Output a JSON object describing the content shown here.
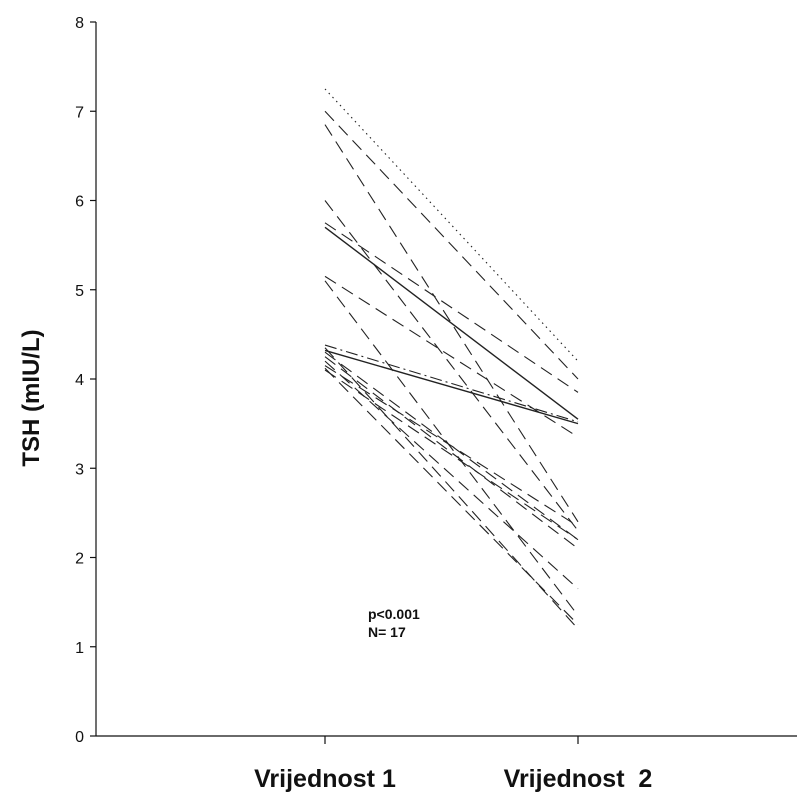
{
  "chart_data": {
    "type": "line",
    "title": "",
    "ylabel": "TSH (mIU/L)",
    "xlabel": "",
    "categories": [
      "Vrijednost 1",
      "Vrijednost  2"
    ],
    "ylim": [
      0,
      8
    ],
    "yticks": [
      "0",
      "1",
      "2",
      "3",
      "4",
      "5",
      "6",
      "7",
      "8"
    ],
    "grid": false,
    "annotation": {
      "line1": "p<0.001",
      "line2": "N= 17"
    },
    "series": [
      {
        "values": [
          7.25,
          4.2
        ],
        "style": "dotted"
      },
      {
        "values": [
          7.0,
          4.0
        ],
        "style": "dashed"
      },
      {
        "values": [
          6.85,
          2.4
        ],
        "style": "dashed"
      },
      {
        "values": [
          6.0,
          2.3
        ],
        "style": "dashed"
      },
      {
        "values": [
          5.75,
          3.85
        ],
        "style": "dashed"
      },
      {
        "values": [
          5.7,
          3.55
        ],
        "style": "solid"
      },
      {
        "values": [
          5.15,
          3.35
        ],
        "style": "dashed"
      },
      {
        "values": [
          5.1,
          1.35
        ],
        "style": "dashed"
      },
      {
        "values": [
          4.38,
          3.52
        ],
        "style": "dash-dot"
      },
      {
        "values": [
          4.35,
          1.2
        ],
        "style": "dashed"
      },
      {
        "values": [
          4.32,
          3.5
        ],
        "style": "solid"
      },
      {
        "values": [
          4.3,
          2.2
        ],
        "style": "dashed"
      },
      {
        "values": [
          4.25,
          2.1
        ],
        "style": "dashed"
      },
      {
        "values": [
          4.2,
          1.65
        ],
        "style": "dashed"
      },
      {
        "values": [
          4.15,
          2.35
        ],
        "style": "dashed"
      },
      {
        "values": [
          4.12,
          1.25
        ],
        "style": "dashed"
      },
      {
        "values": [
          4.1,
          2.2
        ],
        "style": "dashed"
      }
    ]
  }
}
